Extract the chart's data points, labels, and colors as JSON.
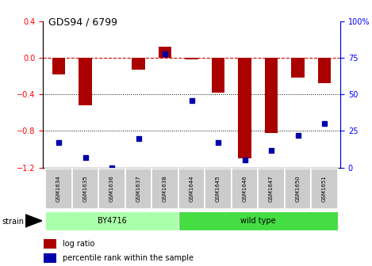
{
  "title": "GDS94 / 6799",
  "samples": [
    "GSM1634",
    "GSM1635",
    "GSM1636",
    "GSM1637",
    "GSM1638",
    "GSM1644",
    "GSM1645",
    "GSM1646",
    "GSM1647",
    "GSM1650",
    "GSM1651"
  ],
  "log_ratio": [
    -0.18,
    -0.52,
    0.0,
    -0.13,
    0.12,
    -0.02,
    -0.38,
    -1.1,
    -0.82,
    -0.22,
    -0.28
  ],
  "percentile_rank": [
    17,
    7,
    0,
    20,
    78,
    46,
    17,
    5,
    12,
    22,
    30
  ],
  "group_defs": [
    {
      "label": "BY4716",
      "start": 0,
      "end": 4,
      "color": "#AAFFAA"
    },
    {
      "label": "wild type",
      "start": 5,
      "end": 10,
      "color": "#44DD44"
    }
  ],
  "ylim_left": [
    -1.2,
    0.4
  ],
  "ylim_right": [
    0,
    100
  ],
  "bar_color": "#AA0000",
  "dot_color": "#0000AA",
  "hline_color": "#CC0000",
  "grid_color": "#000000",
  "bg_color": "#FFFFFF",
  "cell_color": "#CCCCCC",
  "legend_items": [
    "log ratio",
    "percentile rank within the sample"
  ]
}
